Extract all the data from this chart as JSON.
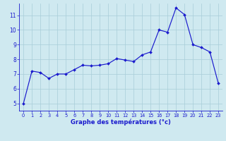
{
  "x": [
    0,
    1,
    2,
    3,
    4,
    5,
    6,
    7,
    8,
    9,
    10,
    11,
    12,
    13,
    14,
    15,
    16,
    17,
    18,
    19,
    20,
    21,
    22,
    23
  ],
  "y": [
    5.0,
    7.2,
    7.1,
    6.7,
    7.0,
    7.0,
    7.3,
    7.6,
    7.55,
    7.6,
    7.7,
    8.05,
    7.95,
    7.85,
    8.3,
    8.5,
    10.0,
    9.85,
    11.5,
    11.05,
    9.0,
    8.8,
    8.5,
    6.35
  ],
  "line_color": "#1a1acd",
  "marker": "D",
  "marker_size": 2.0,
  "bg_color": "#cfe9f0",
  "grid_color": "#a8cdd8",
  "xlabel": "Graphe des températures (°c)",
  "tick_color": "#1a1acd",
  "ylim": [
    4.5,
    11.8
  ],
  "xlim": [
    -0.5,
    23.5
  ],
  "yticks": [
    5,
    6,
    7,
    8,
    9,
    10,
    11
  ],
  "xticks": [
    0,
    1,
    2,
    3,
    4,
    5,
    6,
    7,
    8,
    9,
    10,
    11,
    12,
    13,
    14,
    15,
    16,
    17,
    18,
    19,
    20,
    21,
    22,
    23
  ]
}
